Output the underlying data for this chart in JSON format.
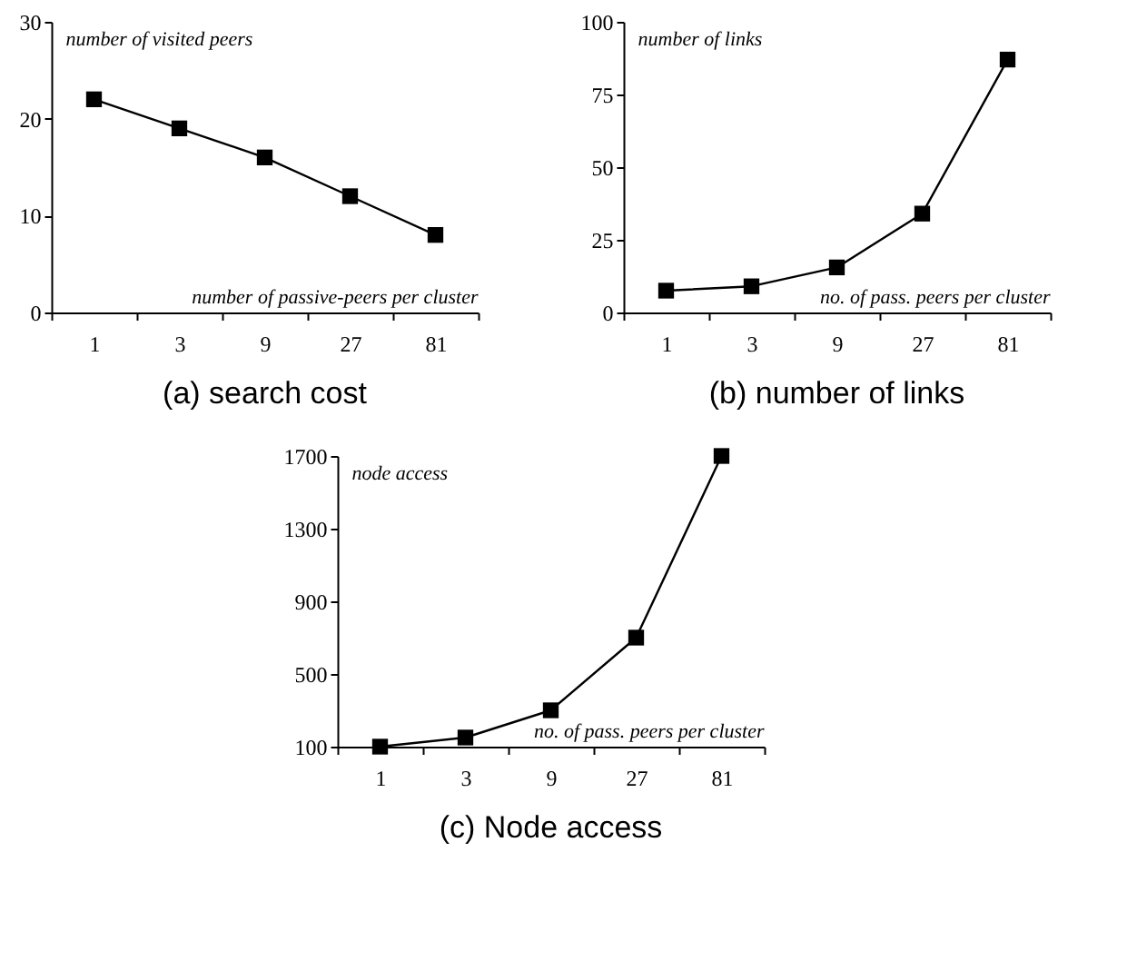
{
  "chart_data": [
    {
      "type": "line",
      "title": "(a) search cost",
      "xlabel": "number of passive-peers per cluster",
      "ylabel": "number of visited peers",
      "categories": [
        "1",
        "3",
        "9",
        "27",
        "81"
      ],
      "marker": "square",
      "ylim": [
        0,
        30
      ],
      "yticks": [
        0,
        10,
        20,
        30
      ],
      "series": [
        {
          "color": "#000000",
          "values": [
            22,
            19,
            16,
            12,
            8
          ]
        }
      ]
    },
    {
      "type": "line",
      "title": "(b) number of links",
      "xlabel": "no. of pass. peers per cluster",
      "ylabel": "number of links",
      "categories": [
        "1",
        "3",
        "9",
        "27",
        "81"
      ],
      "marker": "square",
      "ylim": [
        0,
        100
      ],
      "yticks": [
        0,
        25,
        50,
        75,
        100
      ],
      "series": [
        {
          "color": "#000000",
          "values": [
            7.5,
            9,
            15.5,
            34,
            87
          ]
        }
      ]
    },
    {
      "type": "line",
      "title": "(c) Node access",
      "xlabel": "no. of pass. peers per cluster",
      "ylabel": "node access",
      "categories": [
        "1",
        "3",
        "9",
        "27",
        "81"
      ],
      "marker": "square",
      "ylim": [
        100,
        1700
      ],
      "yticks": [
        100,
        500,
        900,
        1300,
        1700
      ],
      "series": [
        {
          "color": "#000000",
          "values": [
            100,
            150,
            300,
            700,
            1700
          ]
        }
      ]
    }
  ]
}
